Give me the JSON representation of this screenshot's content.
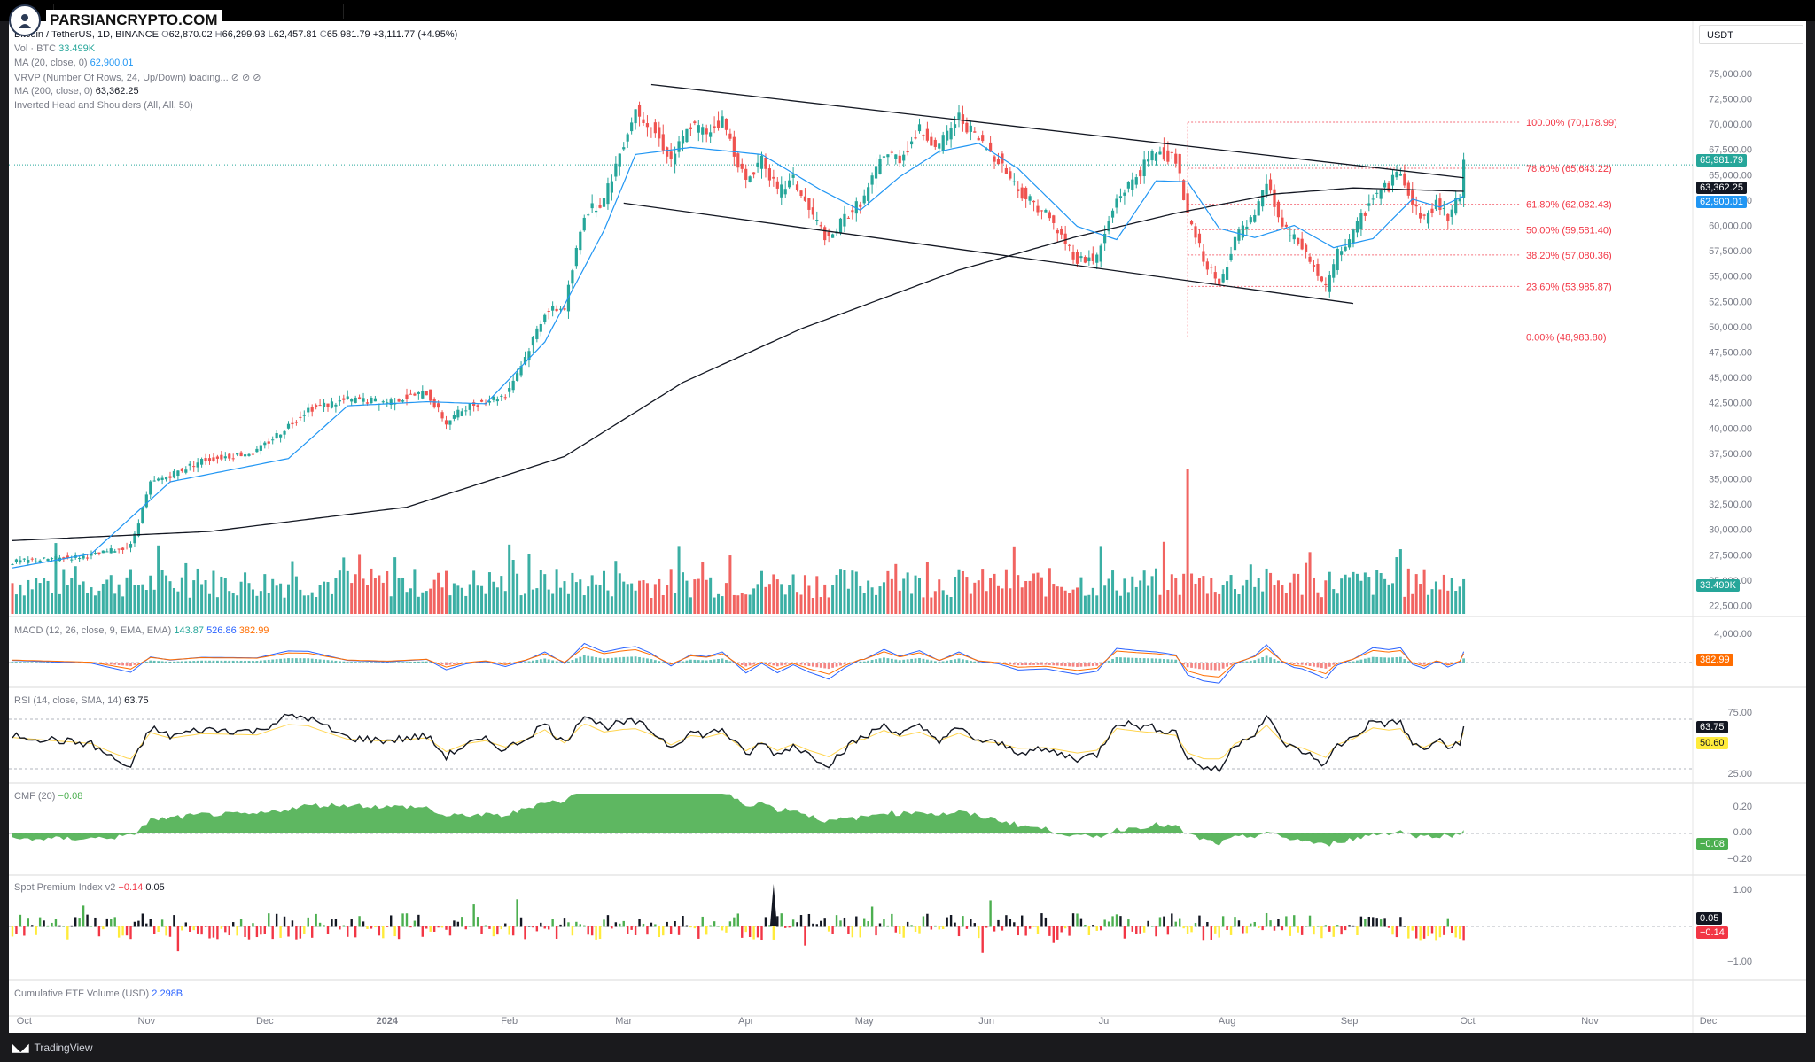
{
  "brand": {
    "logo_text": "PARSIANCRYPTO.COM"
  },
  "footer": {
    "platform": "TradingView"
  },
  "price_scale_unit": "USDT",
  "legend": {
    "ohlc": {
      "o_label": "O",
      "o": "62,870.02",
      "h_label": "H",
      "h": "66,299.93",
      "l_label": "L",
      "l": "62,457.81",
      "c_label": "C",
      "c": "65,981.79",
      "chg": "+3,111.77 (+4.95%)"
    },
    "symbol": "Bitcoin / TetherUS, 1D, BINANCE",
    "vol": {
      "label": "Vol · BTC",
      "value": "33.499K"
    },
    "ma20": {
      "label": "MA (20, close, 0)",
      "value": "62,900.01"
    },
    "vrvp": {
      "label": "VRVP (Number Of Rows, 24, Up/Down) loading...",
      "icons": "⊘ ⊘ ⊘"
    },
    "ma200": {
      "label": "MA (200, close, 0)",
      "value": "63,362.25"
    },
    "ihs": {
      "label": "Inverted Head and Shoulders (All, All, 50)"
    }
  },
  "indicators": {
    "macd": {
      "label": "MACD (12, 26, close, 9, EMA, EMA)",
      "v1": "143.87",
      "v2": "526.86",
      "v3": "382.99",
      "axis": [
        "4,000.00"
      ],
      "tag": "382.99"
    },
    "rsi": {
      "label": "RSI (14, close, SMA, 14)",
      "value": "63.75",
      "axis": [
        "75.00",
        "25.00"
      ],
      "tag1": "63.75",
      "tag2": "50.60"
    },
    "cmf": {
      "label": "CMF (20)",
      "value": "−0.08",
      "axis": [
        "0.20",
        "0.00",
        "−0.20"
      ],
      "tag": "−0.08"
    },
    "spi": {
      "label": "Spot Premium Index v2",
      "v1": "−0.14",
      "v2": "0.05",
      "axis": [
        "1.00",
        "−1.00"
      ],
      "tag1": "0.05",
      "tag2": "−0.14"
    },
    "etf": {
      "label": "Cumulative ETF Volume (USD)",
      "value": "2.298B"
    }
  },
  "price_tags": {
    "last": "65,981.79",
    "ma200": "63,362.25",
    "ma20": "62,900.01",
    "volume": "33.499K"
  },
  "fib_levels": [
    {
      "label": "100.00% (70,178.99)",
      "price": 70178.99
    },
    {
      "label": "78.60% (65,643.22)",
      "price": 65643.22
    },
    {
      "label": "61.80% (62,082.43)",
      "price": 62082.43
    },
    {
      "label": "50.00% (59,581.40)",
      "price": 59581.4
    },
    {
      "label": "38.20% (57,080.36)",
      "price": 57080.36
    },
    {
      "label": "23.60% (53,985.87)",
      "price": 53985.87
    },
    {
      "label": "0.00% (48,983.80)",
      "price": 48983.8
    }
  ],
  "chart_data": {
    "type": "candlestick",
    "title": "Bitcoin / TetherUS, 1D, BINANCE",
    "y_axis_labels": [
      "75,000.00",
      "72,500.00",
      "70,000.00",
      "67,500.00",
      "65,000.00",
      "62,500.00",
      "60,000.00",
      "57,500.00",
      "55,000.00",
      "52,500.00",
      "50,000.00",
      "47,500.00",
      "45,000.00",
      "42,500.00",
      "40,000.00",
      "37,500.00",
      "35,000.00",
      "32,500.00",
      "30,000.00",
      "27,500.00",
      "25,000.00",
      "22,500.00"
    ],
    "ylim": [
      21500,
      77000
    ],
    "x_axis_labels": [
      "Oct",
      "Nov",
      "Dec",
      "2024",
      "Feb",
      "Mar",
      "Apr",
      "May",
      "Jun",
      "Jul",
      "Aug",
      "Sep",
      "Oct",
      "Nov",
      "Dec"
    ],
    "close_path": [
      [
        0,
        26800
      ],
      [
        20,
        27400
      ],
      [
        30,
        28400
      ],
      [
        35,
        34500
      ],
      [
        48,
        36800
      ],
      [
        62,
        37700
      ],
      [
        75,
        41900
      ],
      [
        85,
        42800
      ],
      [
        95,
        42600
      ],
      [
        105,
        43500
      ],
      [
        110,
        40500
      ],
      [
        115,
        42100
      ],
      [
        125,
        43300
      ],
      [
        130,
        47000
      ],
      [
        135,
        51500
      ],
      [
        140,
        51900
      ],
      [
        145,
        61200
      ],
      [
        150,
        62500
      ],
      [
        155,
        68300
      ],
      [
        158,
        71500
      ],
      [
        162,
        69800
      ],
      [
        167,
        66500
      ],
      [
        172,
        69900
      ],
      [
        176,
        69200
      ],
      [
        180,
        70400
      ],
      [
        186,
        64200
      ],
      [
        190,
        66800
      ],
      [
        194,
        63200
      ],
      [
        198,
        64500
      ],
      [
        202,
        61500
      ],
      [
        207,
        58400
      ],
      [
        211,
        60800
      ],
      [
        216,
        62700
      ],
      [
        221,
        67200
      ],
      [
        225,
        66600
      ],
      [
        230,
        69400
      ],
      [
        235,
        67800
      ],
      [
        240,
        70700
      ],
      [
        245,
        68400
      ],
      [
        250,
        66500
      ],
      [
        255,
        63500
      ],
      [
        262,
        61200
      ],
      [
        267,
        58300
      ],
      [
        270,
        56600
      ],
      [
        275,
        56800
      ],
      [
        280,
        62600
      ],
      [
        285,
        64900
      ],
      [
        290,
        67400
      ],
      [
        295,
        66500
      ],
      [
        298,
        60800
      ],
      [
        302,
        56800
      ],
      [
        306,
        53900
      ],
      [
        310,
        58800
      ],
      [
        315,
        60700
      ],
      [
        318,
        64200
      ],
      [
        322,
        59800
      ],
      [
        327,
        57800
      ],
      [
        330,
        55800
      ],
      [
        333,
        53700
      ],
      [
        336,
        57200
      ],
      [
        340,
        59200
      ],
      [
        345,
        62900
      ],
      [
        349,
        63900
      ],
      [
        352,
        65600
      ],
      [
        355,
        62100
      ],
      [
        358,
        60600
      ],
      [
        361,
        62200
      ],
      [
        364,
        60900
      ],
      [
        367,
        62870
      ],
      [
        368,
        65981.79
      ]
    ],
    "ma20_path": [
      [
        0,
        26200
      ],
      [
        20,
        27600
      ],
      [
        40,
        34700
      ],
      [
        70,
        37000
      ],
      [
        85,
        42200
      ],
      [
        105,
        42600
      ],
      [
        120,
        42400
      ],
      [
        135,
        48500
      ],
      [
        150,
        59500
      ],
      [
        158,
        67000
      ],
      [
        172,
        67700
      ],
      [
        190,
        67000
      ],
      [
        205,
        63500
      ],
      [
        215,
        61500
      ],
      [
        225,
        64800
      ],
      [
        235,
        67300
      ],
      [
        245,
        68100
      ],
      [
        255,
        65600
      ],
      [
        270,
        59900
      ],
      [
        280,
        58600
      ],
      [
        290,
        64400
      ],
      [
        298,
        64300
      ],
      [
        306,
        59700
      ],
      [
        315,
        58800
      ],
      [
        325,
        60000
      ],
      [
        335,
        57800
      ],
      [
        345,
        58700
      ],
      [
        355,
        62600
      ],
      [
        362,
        61800
      ],
      [
        368,
        62900.01
      ]
    ],
    "ma200_path": [
      [
        0,
        28900
      ],
      [
        50,
        29800
      ],
      [
        100,
        32200
      ],
      [
        140,
        37200
      ],
      [
        170,
        44500
      ],
      [
        200,
        49800
      ],
      [
        240,
        55600
      ],
      [
        270,
        58900
      ],
      [
        295,
        61200
      ],
      [
        320,
        63100
      ],
      [
        340,
        63700
      ],
      [
        368,
        63362.25
      ]
    ],
    "channel_upper": [
      [
        162,
        73900
      ],
      [
        368,
        64700
      ]
    ],
    "channel_lower": [
      [
        155,
        62200
      ],
      [
        340,
        52300
      ]
    ]
  }
}
